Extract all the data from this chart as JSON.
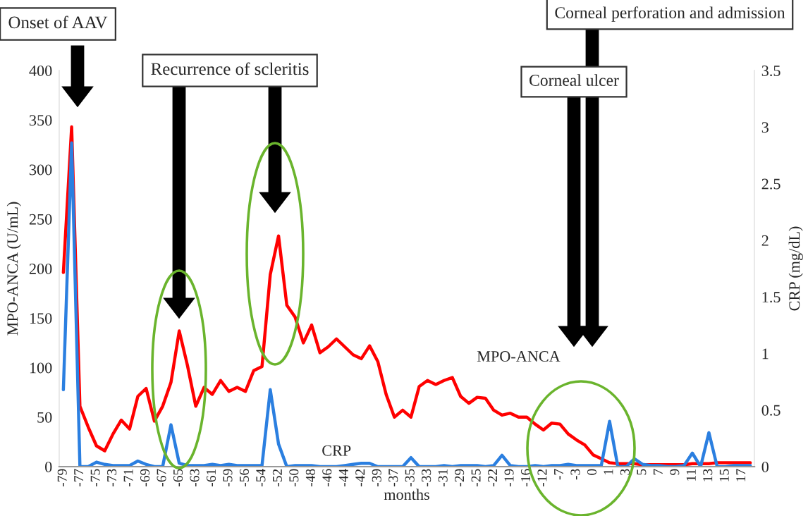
{
  "chart_data": {
    "type": "line",
    "xlabel": "months",
    "ylabel": "MPO-ANCA (U/mL)",
    "y2label": "CRP (mg/dL)",
    "categories": [
      "-79",
      null,
      "-77",
      null,
      "-75",
      null,
      "-73",
      null,
      "-71",
      null,
      "-69",
      null,
      "-67",
      null,
      "-65",
      null,
      "-63",
      null,
      "-61",
      null,
      "-59",
      null,
      "-56",
      null,
      "-54",
      null,
      "-52",
      null,
      "-50",
      null,
      "-48",
      null,
      "-46",
      null,
      "-44",
      null,
      "-42",
      null,
      "-39",
      null,
      "-37",
      null,
      "-35",
      null,
      "-33",
      null,
      "-31",
      null,
      "-29",
      null,
      "-25",
      null,
      "-22",
      null,
      "-19",
      null,
      "-16",
      null,
      "-12",
      null,
      "-7",
      null,
      "-3",
      null,
      "0",
      null,
      "1",
      null,
      "3",
      null,
      "5",
      null,
      "7",
      null,
      "9",
      null,
      "11",
      null,
      "13",
      null,
      "15",
      null,
      "17",
      null
    ],
    "series": [
      {
        "name": "MPO-ANCA",
        "color": "#ff0000",
        "values": [
          196,
          343,
          61,
          40,
          21,
          16,
          33,
          47,
          38,
          71,
          79,
          46,
          61,
          85,
          137,
          102,
          61,
          80,
          73,
          87,
          76,
          80,
          76,
          97,
          101,
          194,
          233,
          163,
          151,
          125,
          143,
          115,
          121,
          129,
          121,
          113,
          109,
          122,
          106,
          73,
          50,
          57,
          50,
          81,
          87,
          83,
          87,
          90,
          71,
          64,
          70,
          69,
          57,
          52,
          54,
          50,
          50,
          43,
          37,
          44,
          43,
          33,
          27,
          22,
          12,
          8,
          4,
          3,
          3,
          3,
          2,
          2,
          2,
          2,
          2,
          2,
          3,
          3,
          3,
          4,
          4,
          4,
          4,
          4
        ]
      },
      {
        "name": "CRP",
        "color": "#2b7fe0",
        "axis": "y2",
        "values": [
          0.68,
          2.86,
          0,
          0,
          0.04,
          0.02,
          0.01,
          0.01,
          0.01,
          0.05,
          0.02,
          0,
          0,
          0.37,
          0.03,
          0.01,
          0.01,
          0.01,
          0.02,
          0.01,
          0.02,
          0.01,
          0.01,
          0.01,
          0.01,
          0.68,
          0.2,
          0,
          0.01,
          0.01,
          0.01,
          0,
          0,
          0,
          0.01,
          0.02,
          0.03,
          0.03,
          0,
          0,
          0,
          0,
          0.08,
          0,
          0,
          0,
          0.01,
          0,
          0.01,
          0.01,
          0.01,
          0,
          0.01,
          0.1,
          0.01,
          0,
          0,
          0.01,
          0,
          0.01,
          0.01,
          0.02,
          0.01,
          0.01,
          0.01,
          0.01,
          0.4,
          0,
          0,
          0.07,
          0.02,
          0.01,
          0.01,
          0,
          0,
          0.01,
          0.12,
          0,
          0.3,
          0,
          0,
          0.01,
          0.01,
          0.01
        ]
      }
    ],
    "ylim": [
      0,
      400
    ],
    "yticks": [
      0,
      50,
      100,
      150,
      200,
      250,
      300,
      350,
      400
    ],
    "y2lim": [
      0,
      3.5
    ],
    "y2ticks": [
      0,
      0.5,
      1,
      1.5,
      2,
      2.5,
      3,
      3.5
    ],
    "annotations": [
      "Onset of AAV",
      "Recurrence of scleritis",
      "Corneal perforation and admission",
      "Corneal ulcer"
    ],
    "grid": false,
    "legend": false
  }
}
